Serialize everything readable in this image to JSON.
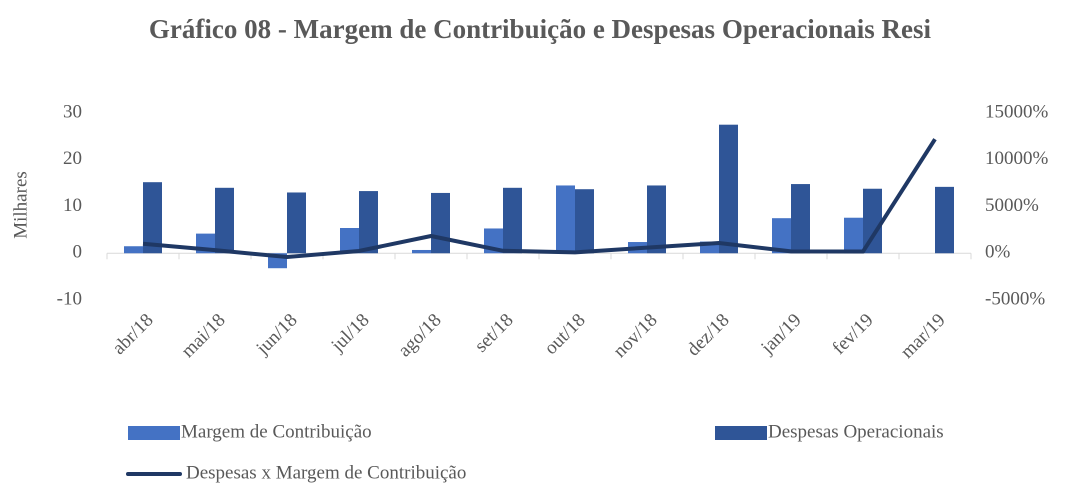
{
  "chart_data": {
    "type": "bar_line",
    "title": "Gráfico 08 - Margem de Contribuição e Despesas Operacionais Resi",
    "ylabel": "Milhares",
    "categories": [
      "abr/18",
      "mai/18",
      "jun/18",
      "jul/18",
      "ago/18",
      "set/18",
      "out/18",
      "nov/18",
      "dez/18",
      "jan/19",
      "fev/19",
      "mar/19"
    ],
    "series": [
      {
        "name": "Margem de Contribuição",
        "type": "bar",
        "color": "#4472c4",
        "values": [
          1.5,
          4.2,
          -3.2,
          5.4,
          0.7,
          5.3,
          14.5,
          2.4,
          2.5,
          7.5,
          7.6,
          null
        ]
      },
      {
        "name": "Despesas Operacionais",
        "type": "bar",
        "color": "#2f5597",
        "values": [
          15.2,
          14,
          13,
          13.3,
          12.9,
          14,
          13.7,
          14.5,
          27.5,
          14.8,
          13.8,
          14.2
        ]
      },
      {
        "name": "Despesas x Margem de Contribuição",
        "type": "line",
        "axis": "y2",
        "color": "#1f3864",
        "values": [
          1013,
          333,
          -406,
          246,
          1843,
          264,
          94,
          604,
          1100,
          197,
          182,
          12200
        ]
      }
    ],
    "ylim": [
      -10,
      30
    ],
    "yticks": [
      -10,
      0,
      10,
      20,
      30
    ],
    "negative_tick_color": "#ff0000",
    "y2lim": [
      -5000,
      15000
    ],
    "y2ticks": [
      {
        "value": -5000,
        "label": "-5000%"
      },
      {
        "value": 0,
        "label": "0%"
      },
      {
        "value": 5000,
        "label": "5000%"
      },
      {
        "value": 10000,
        "label": "10000%"
      },
      {
        "value": 15000,
        "label": "15000%"
      }
    ],
    "legend": "bottom",
    "grid": false
  }
}
